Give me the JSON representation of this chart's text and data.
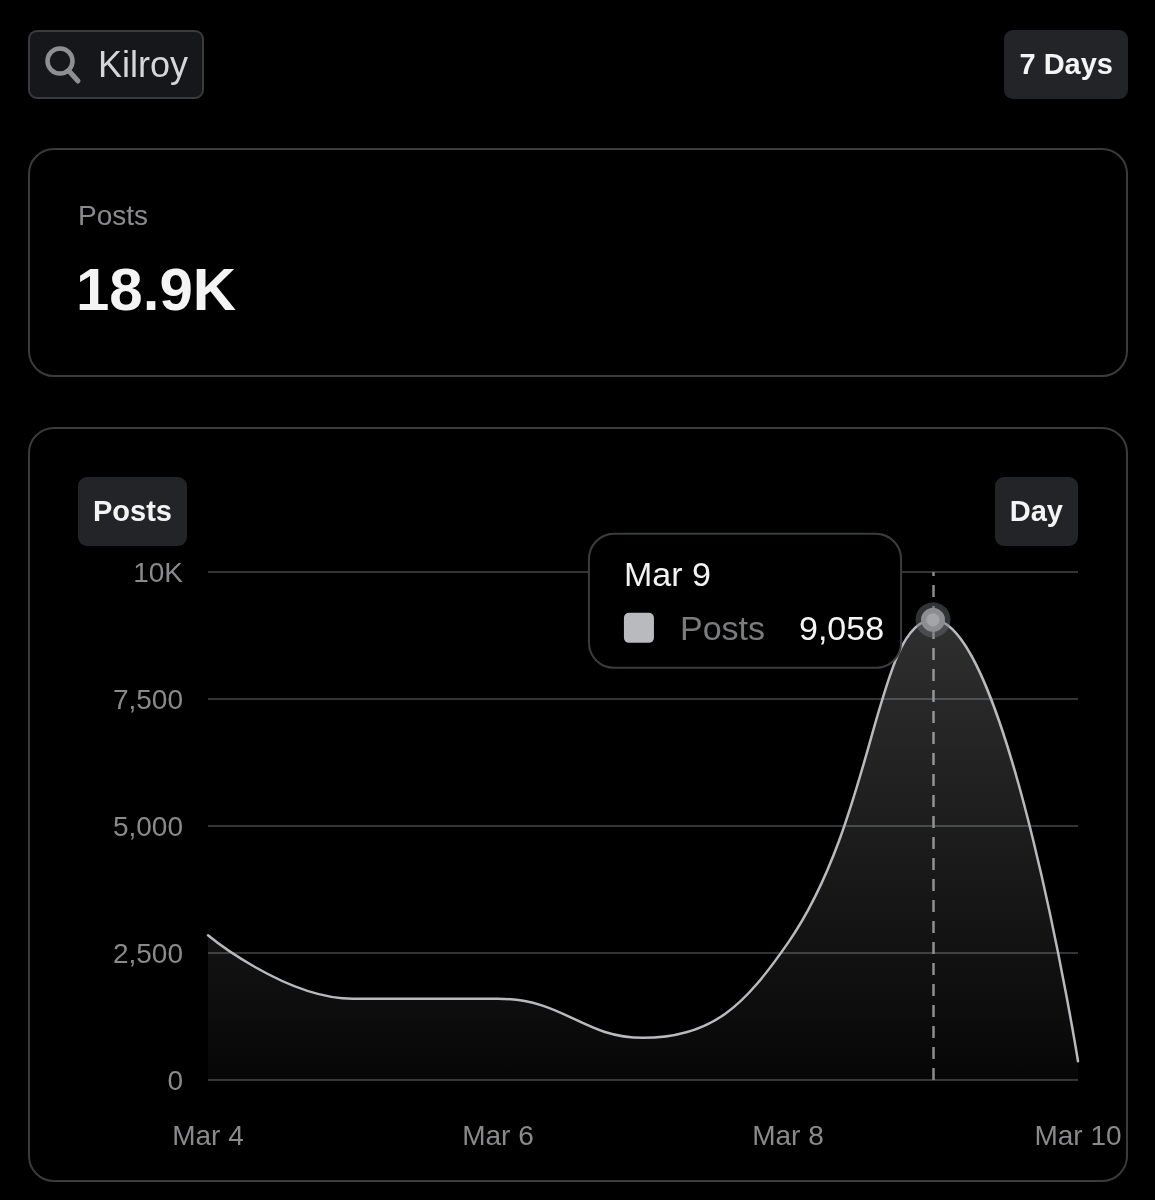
{
  "chart_data": [
    {
      "type": "other",
      "title": "Posts",
      "subtitle": "18.9K",
      "annotations": [
        "Kilroy",
        "7 Days"
      ]
    },
    {
      "type": "area",
      "title": "Posts",
      "annotations": [
        "Day",
        "Mar 9"
      ],
      "x": [
        "--03-04",
        "--03-05",
        "--03-06",
        "--03-07",
        "--03-08",
        "--03-09",
        "--03-10"
      ],
      "series": [
        {
          "name": "Posts",
          "color": "#b9babd",
          "values": [
            2850,
            1600,
            1600,
            830,
            2700,
            9058,
            370
          ],
          "value_labels": [
            null,
            null,
            null,
            null,
            null,
            "9,058",
            null
          ]
        }
      ],
      "xlim": [
        "--03-04",
        "--03-10"
      ],
      "xticks": [
        {
          "value": "--03-04",
          "label": "Mar 4"
        },
        {
          "value": "--03-06",
          "label": "Mar 6"
        },
        {
          "value": "--03-08",
          "label": "Mar 8"
        },
        {
          "value": "--03-10",
          "label": "Mar 10"
        }
      ],
      "ylim": [
        0,
        10000
      ],
      "yticks": [
        0,
        {
          "value": 2500,
          "label": "2,500"
        },
        {
          "value": 5000,
          "label": "5,000"
        },
        {
          "value": 7500,
          "label": "7,500"
        },
        {
          "value": 10000,
          "label": "10K"
        }
      ],
      "grid": "y",
      "marker": "none",
      "ref_lines": [
        {
          "axis": "x",
          "value": "--03-09",
          "color": "#8a8b8d",
          "line_style": "dashed"
        }
      ]
    }
  ]
}
